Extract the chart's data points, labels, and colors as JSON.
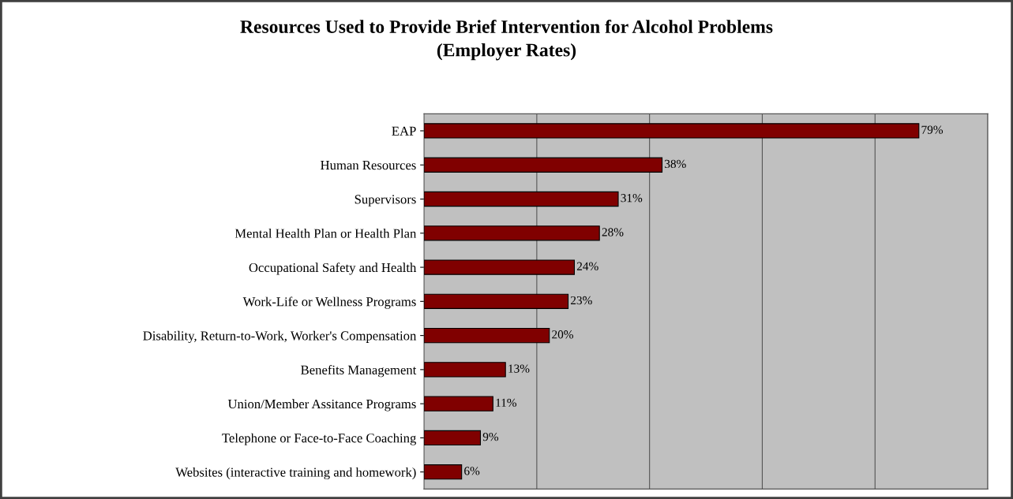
{
  "chart_data": {
    "type": "bar",
    "orientation": "horizontal",
    "title": "Resources Used to Provide Brief Intervention for Alcohol Problems\n(Employer Rates)",
    "categories": [
      "EAP",
      "Human Resources",
      "Supervisors",
      "Mental Health Plan or Health Plan",
      "Occupational Safety and Health",
      "Work-Life or Wellness Programs",
      "Disability, Return-to-Work, Worker's Compensation",
      "Benefits Management",
      "Union/Member Assitance Programs",
      "Telephone or Face-to-Face Coaching",
      "Websites (interactive training and homework)"
    ],
    "values": [
      79,
      38,
      31,
      28,
      24,
      23,
      20,
      13,
      11,
      9,
      6
    ],
    "value_labels": [
      "79%",
      "38%",
      "31%",
      "28%",
      "24%",
      "23%",
      "20%",
      "13%",
      "11%",
      "9%",
      "6%"
    ],
    "color": "#800000",
    "xlim": [
      0,
      90
    ],
    "xticks": [
      {
        "value": 18,
        "label": null
      },
      {
        "value": 36,
        "label": null
      },
      {
        "value": 54,
        "label": null
      },
      {
        "value": 72,
        "label": null
      },
      {
        "value": 90,
        "label": null
      }
    ],
    "tick_labels": "y",
    "grid": "x",
    "legend": false
  }
}
